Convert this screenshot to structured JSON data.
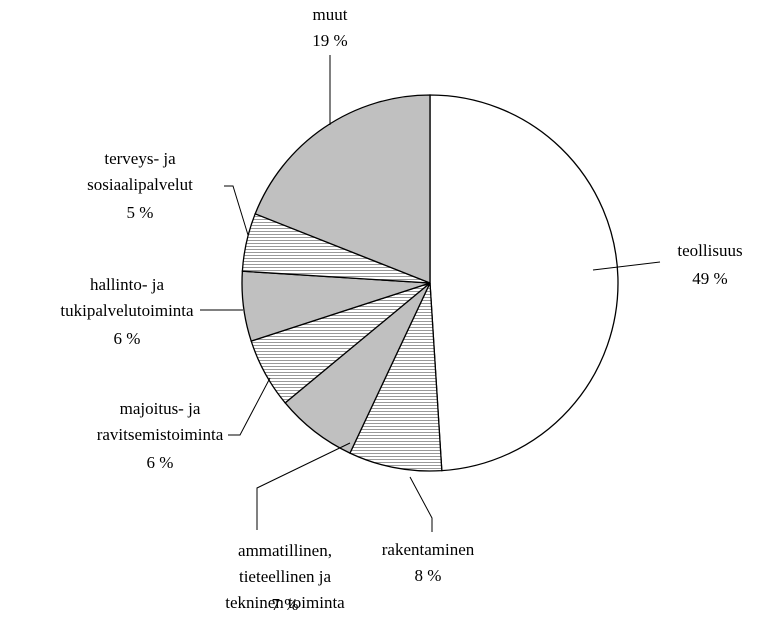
{
  "chart_data": {
    "type": "pie",
    "categories": [
      "teollisuus",
      "rakentaminen",
      "ammatillinen,\ntieteellinen ja\ntekninen toiminta",
      "majoitus- ja\nravitsemistoiminta",
      "hallinto- ja\ntukipalvelutoiminta",
      "terveys- ja\nsosiaalipalvelut",
      "muut"
    ],
    "values": [
      49,
      8,
      7,
      6,
      6,
      5,
      19
    ],
    "value_labels": [
      "49 %",
      "8 %",
      "7 %",
      "6 %",
      "6 %",
      "5 %",
      "19 %"
    ],
    "colors": [
      "#ffffff",
      "#ffffff",
      "#c0c0c0",
      "#ffffff",
      "#c0c0c0",
      "#ffffff",
      "#c0c0c0"
    ],
    "hatched": [
      false,
      true,
      false,
      true,
      false,
      true,
      false
    ]
  }
}
